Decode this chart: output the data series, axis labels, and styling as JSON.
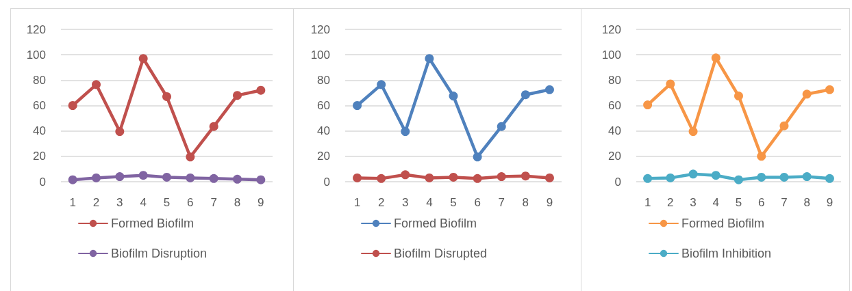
{
  "chart_data": [
    {
      "type": "line",
      "categories": [
        "1",
        "2",
        "3",
        "4",
        "5",
        "6",
        "7",
        "8",
        "9"
      ],
      "ylim": [
        0,
        120
      ],
      "yticks": [
        0,
        20,
        40,
        60,
        80,
        100,
        120
      ],
      "grid": "y",
      "legend": "bottom",
      "marker": "circle",
      "line_style": "solid",
      "series": [
        {
          "name": "Formed Biofilm",
          "color": "#c0504d",
          "values": [
            60,
            76.5,
            39.5,
            97,
            67,
            19.5,
            43.5,
            68,
            72
          ]
        },
        {
          "name": "Biofilm Disruption",
          "color": "#8064a2",
          "values": [
            1.5,
            3,
            4,
            5,
            3.5,
            3,
            2.5,
            2,
            1.5
          ]
        }
      ]
    },
    {
      "type": "line",
      "categories": [
        "1",
        "2",
        "3",
        "4",
        "5",
        "6",
        "7",
        "8",
        "9"
      ],
      "ylim": [
        0,
        120
      ],
      "yticks": [
        0,
        20,
        40,
        60,
        80,
        100,
        120
      ],
      "grid": "y",
      "legend": "bottom",
      "marker": "circle",
      "line_style": "solid",
      "series": [
        {
          "name": "Formed Biofilm",
          "color": "#4f81bd",
          "values": [
            60,
            76.5,
            39.5,
            97,
            67.5,
            19.5,
            43.5,
            68.5,
            72.5
          ]
        },
        {
          "name": "Biofilm Disrupted",
          "color": "#c0504d",
          "values": [
            3,
            2.5,
            5.5,
            3,
            3.5,
            2.5,
            4,
            4.5,
            3
          ]
        }
      ]
    },
    {
      "type": "line",
      "categories": [
        "1",
        "2",
        "3",
        "4",
        "5",
        "6",
        "7",
        "8",
        "9"
      ],
      "ylim": [
        0,
        120
      ],
      "yticks": [
        0,
        20,
        40,
        60,
        80,
        100,
        120
      ],
      "grid": "y",
      "legend": "bottom",
      "marker": "circle",
      "line_style": "solid",
      "series": [
        {
          "name": "Formed Biofilm",
          "color": "#f79646",
          "values": [
            60.5,
            77,
            39.5,
            97.5,
            67.5,
            20,
            44,
            69,
            72.5
          ]
        },
        {
          "name": "Biofilm Inhibition",
          "color": "#4bacc6",
          "values": [
            2.5,
            3,
            6,
            5,
            1.5,
            3.5,
            3.5,
            4,
            2.5
          ]
        }
      ]
    }
  ]
}
